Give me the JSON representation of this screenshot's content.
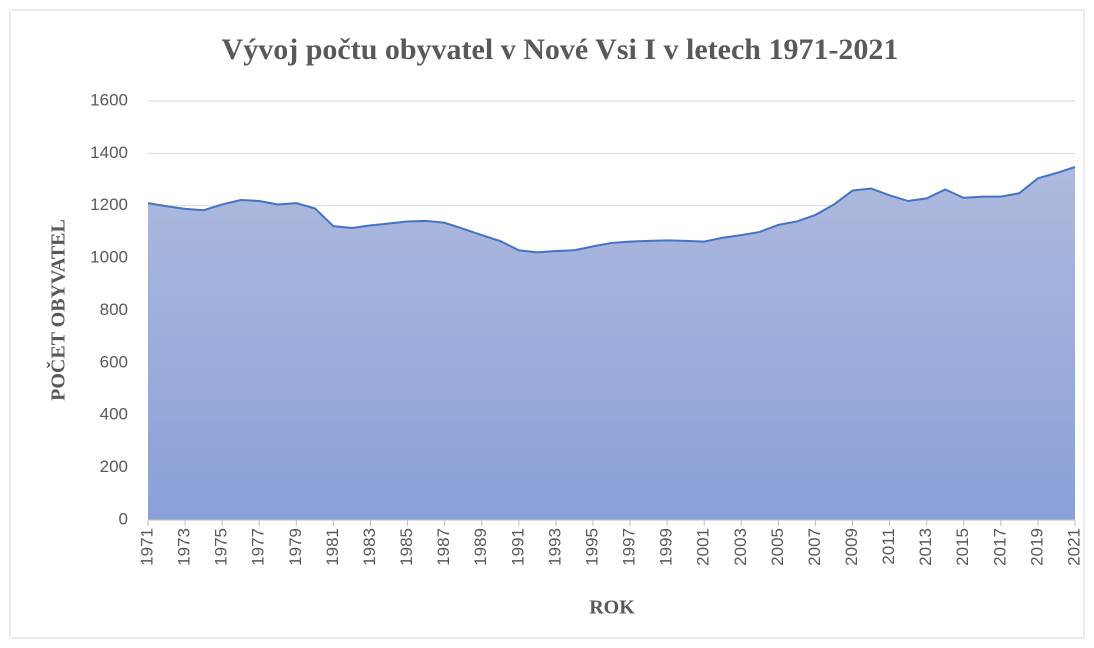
{
  "chart_data": {
    "type": "area",
    "title": "Vývoj počtu obyvatel v Nové Vsi I v letech 1971-2021",
    "x_label": "ROK",
    "y_label": "POČET OBYVATEL",
    "x": [
      1971,
      1972,
      1973,
      1974,
      1975,
      1976,
      1977,
      1978,
      1979,
      1980,
      1981,
      1982,
      1983,
      1984,
      1985,
      1986,
      1987,
      1988,
      1989,
      1990,
      1991,
      1992,
      1993,
      1994,
      1995,
      1996,
      1997,
      1998,
      1999,
      2000,
      2001,
      2002,
      2003,
      2004,
      2005,
      2006,
      2007,
      2008,
      2009,
      2010,
      2011,
      2012,
      2013,
      2014,
      2015,
      2016,
      2017,
      2018,
      2019,
      2020,
      2021
    ],
    "series": [
      {
        "name": "Počet obyvatel",
        "color": "#4472c4",
        "values": [
          1210,
          1198,
          1188,
          1183,
          1205,
          1222,
          1218,
          1205,
          1210,
          1190,
          1122,
          1115,
          1125,
          1132,
          1140,
          1142,
          1135,
          1112,
          1088,
          1065,
          1030,
          1022,
          1027,
          1030,
          1045,
          1058,
          1063,
          1066,
          1068,
          1066,
          1063,
          1078,
          1088,
          1100,
          1127,
          1140,
          1165,
          1205,
          1258,
          1266,
          1240,
          1218,
          1228,
          1262,
          1230,
          1235,
          1235,
          1248,
          1305,
          1325,
          1348
        ]
      }
    ],
    "xlim": [
      1971,
      2021
    ],
    "xticks": [
      1971,
      1973,
      1975,
      1977,
      1979,
      1981,
      1983,
      1985,
      1987,
      1989,
      1991,
      1993,
      1995,
      1997,
      1999,
      2001,
      2003,
      2005,
      2007,
      2009,
      2011,
      2013,
      2015,
      2017,
      2019,
      2021
    ],
    "ylim": [
      0,
      1600
    ],
    "yticks": [
      0,
      200,
      400,
      600,
      800,
      1000,
      1200,
      1400,
      1600
    ],
    "grid": true
  }
}
